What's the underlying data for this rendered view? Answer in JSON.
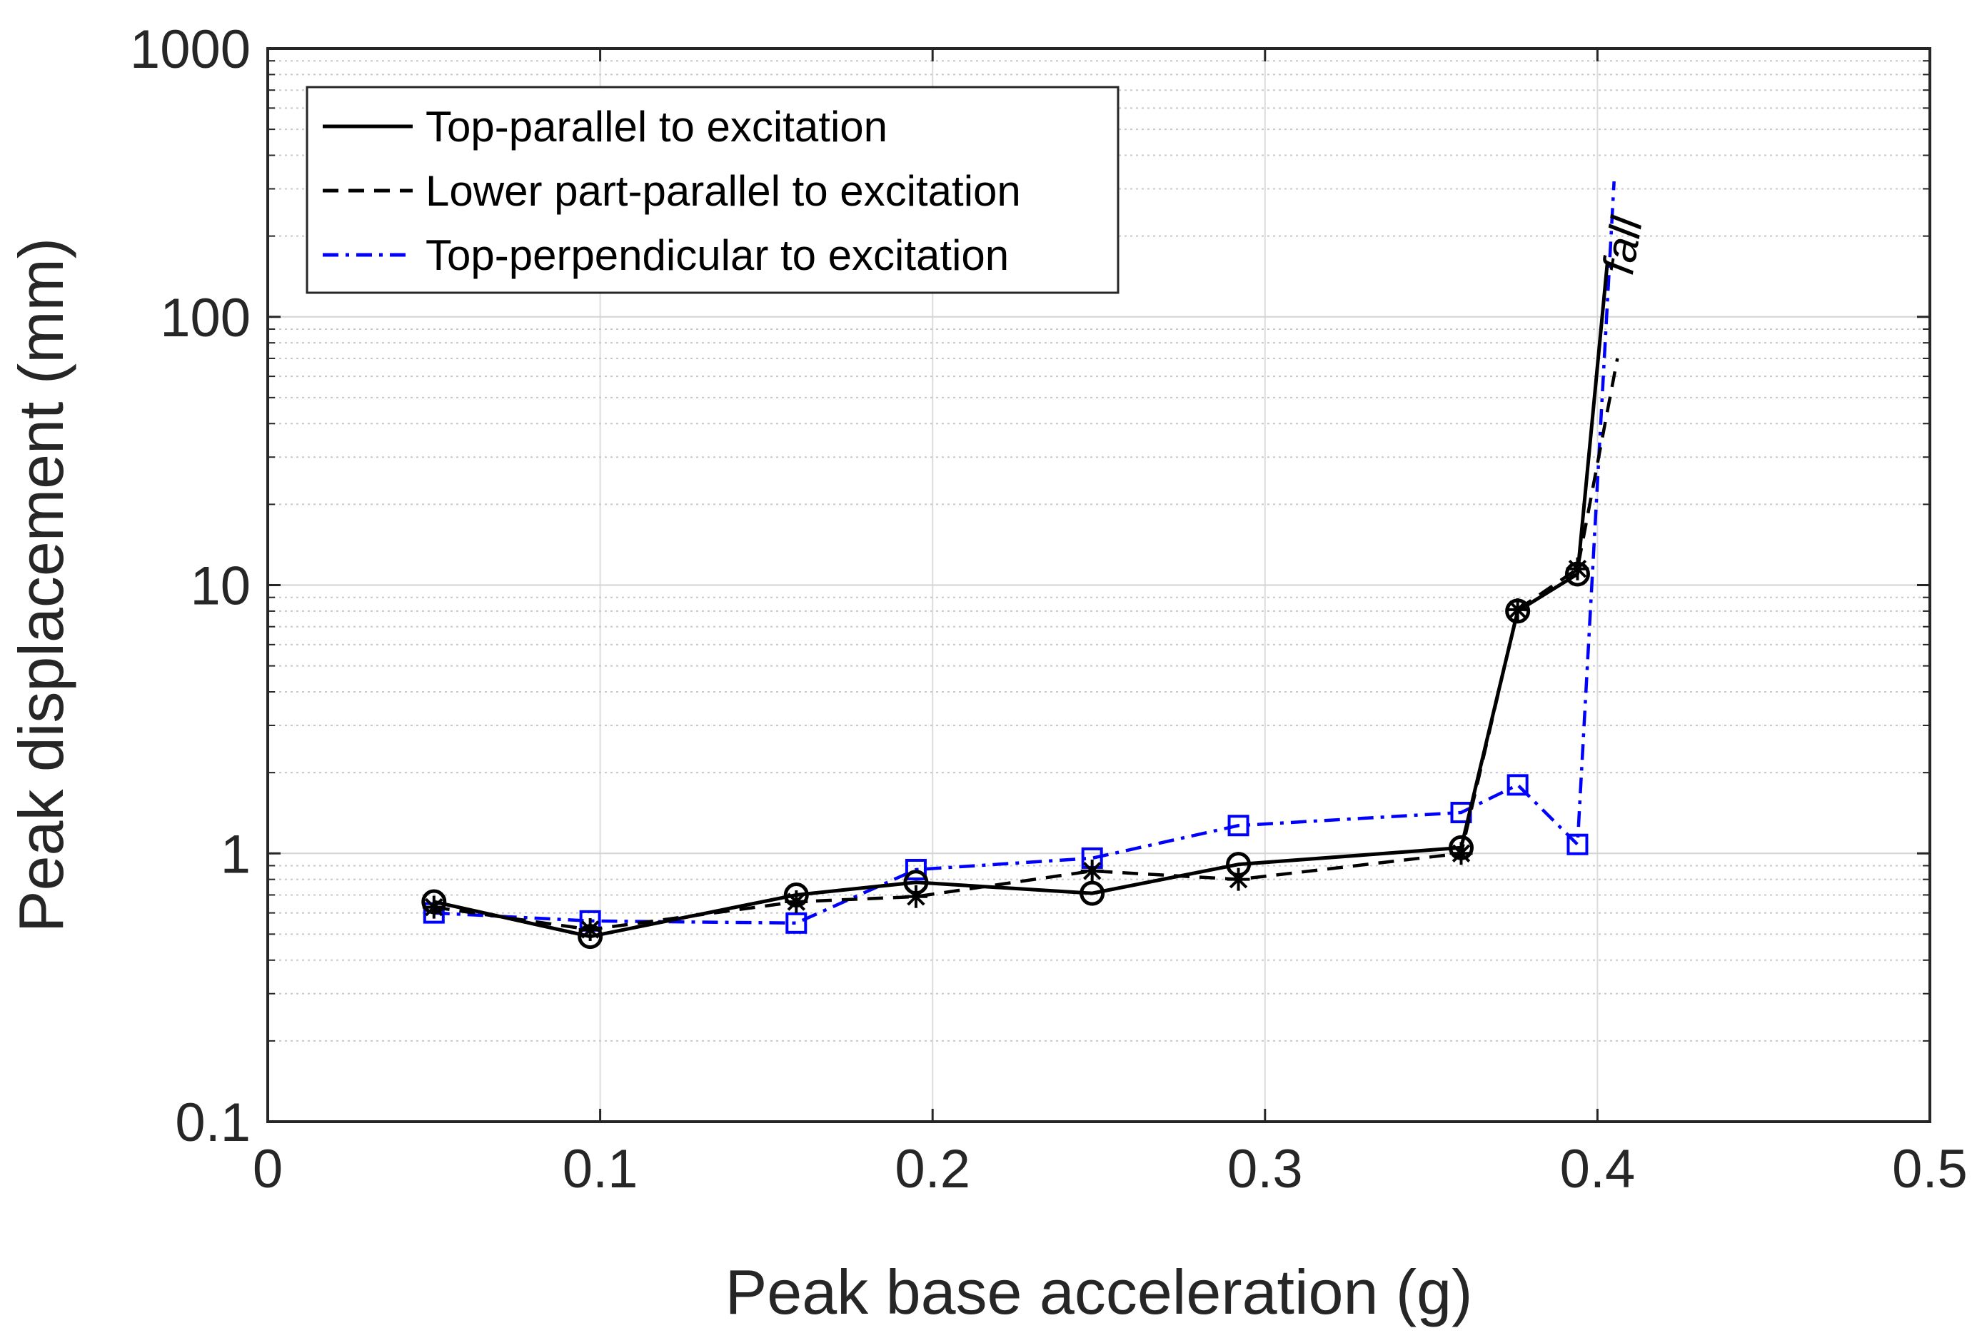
{
  "chart_data": {
    "type": "line",
    "title": "",
    "xlabel": "Peak base acceleration (g)",
    "ylabel": "Peak displacement (mm)",
    "xlim": [
      0,
      0.5
    ],
    "ylim": [
      0.1,
      1000
    ],
    "yscale": "log",
    "grid": true,
    "xticks": [
      "0",
      "0.1",
      "0.2",
      "0.3",
      "0.4",
      "0.5"
    ],
    "yticks": [
      "0.1",
      "1",
      "10",
      "100",
      "1000"
    ],
    "legend_position": "top-left",
    "series": [
      {
        "name": "Top-parallel to excitation",
        "color": "#000000",
        "style": "solid",
        "marker": "circle",
        "x": [
          0.05,
          0.097,
          0.159,
          0.195,
          0.248,
          0.292,
          0.359,
          0.376,
          0.394,
          0.403
        ],
        "y": [
          0.66,
          0.49,
          0.7,
          0.78,
          0.71,
          0.91,
          1.05,
          8.0,
          11.0,
          160
        ]
      },
      {
        "name": "Lower part-parallel to excitation",
        "color": "#000000",
        "style": "dashed",
        "marker": "asterisk",
        "x": [
          0.05,
          0.097,
          0.159,
          0.195,
          0.248,
          0.292,
          0.359,
          0.376,
          0.394,
          0.406
        ],
        "y": [
          0.63,
          0.52,
          0.66,
          0.69,
          0.86,
          0.8,
          1.0,
          8.1,
          11.5,
          70
        ]
      },
      {
        "name": "Top-perpendicular to excitation",
        "color": "#0000ff",
        "style": "dashdot",
        "marker": "square",
        "x": [
          0.05,
          0.097,
          0.159,
          0.195,
          0.248,
          0.292,
          0.359,
          0.376,
          0.394,
          0.405
        ],
        "y": [
          0.6,
          0.56,
          0.55,
          0.87,
          0.96,
          1.27,
          1.42,
          1.8,
          1.08,
          320
        ]
      }
    ],
    "annotations": [
      {
        "text": "fall",
        "x": 0.412,
        "y": 180
      }
    ]
  }
}
